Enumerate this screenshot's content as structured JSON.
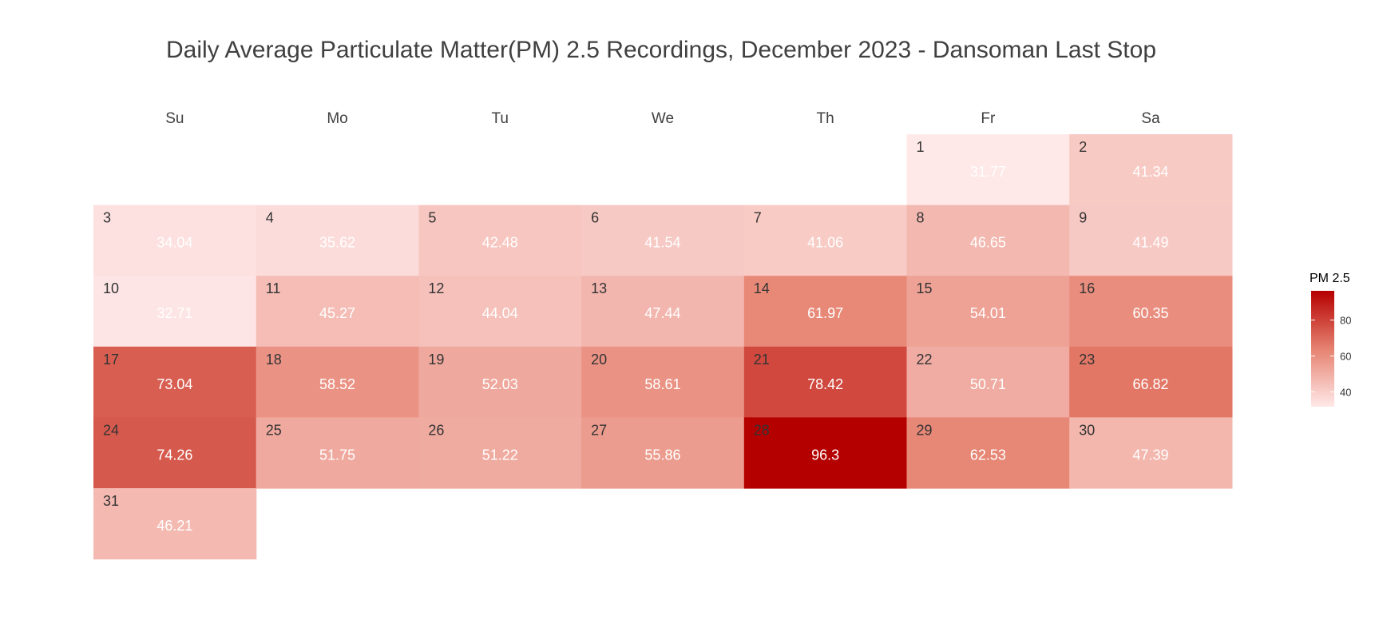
{
  "chart_data": {
    "type": "heatmap",
    "title": "Daily Average Particulate Matter(PM) 2.5 Recordings, December 2023 - Dansoman Last Stop",
    "weekdays": [
      "Su",
      "Mo",
      "Tu",
      "We",
      "Th",
      "Fr",
      "Sa"
    ],
    "first_weekday_index": 5,
    "days": [
      1,
      2,
      3,
      4,
      5,
      6,
      7,
      8,
      9,
      10,
      11,
      12,
      13,
      14,
      15,
      16,
      17,
      18,
      19,
      20,
      21,
      22,
      23,
      24,
      25,
      26,
      27,
      28,
      29,
      30,
      31
    ],
    "values": [
      31.77,
      41.34,
      34.04,
      35.62,
      42.48,
      41.54,
      41.06,
      46.65,
      41.49,
      32.71,
      45.27,
      44.04,
      47.44,
      61.97,
      54.01,
      60.35,
      73.04,
      58.52,
      52.03,
      58.61,
      78.42,
      50.71,
      66.82,
      74.26,
      51.75,
      51.22,
      55.86,
      96.3,
      62.53,
      47.39,
      46.21
    ],
    "value_labels": [
      "31.77",
      "41.34",
      "34.04",
      "35.62",
      "42.48",
      "41.54",
      "41.06",
      "46.65",
      "41.49",
      "32.71",
      "45.27",
      "44.04",
      "47.44",
      "61.97",
      "54.01",
      "60.35",
      "73.04",
      "58.52",
      "52.03",
      "58.61",
      "78.42",
      "50.71",
      "66.82",
      "74.26",
      "51.75",
      "51.22",
      "55.86",
      "96.3",
      "62.53",
      "47.39",
      "46.21"
    ],
    "legend": {
      "title": "PM 2.5",
      "ticks": [
        40,
        60,
        80
      ],
      "range": [
        31.77,
        96.3
      ],
      "placement": "right"
    },
    "color_low": "#ffe8e8",
    "color_high": "#b50000",
    "grid": false
  }
}
